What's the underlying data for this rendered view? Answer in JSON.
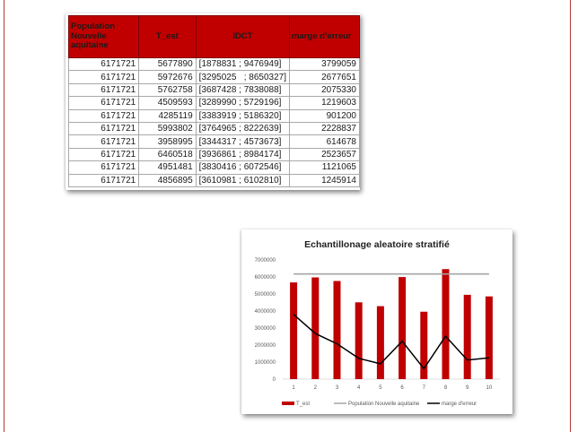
{
  "table": {
    "headers": [
      "Population Nouvelle aquitaine",
      "T_est",
      "IDCT",
      "marge d'erreur"
    ],
    "rows": [
      [
        "6171721",
        "5677890",
        "[1878831 ; 9476949]",
        "3799059"
      ],
      [
        "6171721",
        "5972676",
        "[3295025   ; 8650327]",
        "2677651"
      ],
      [
        "6171721",
        "5762758",
        "[3687428 ; 7838088]",
        "2075330"
      ],
      [
        "6171721",
        "4509593",
        "[3289990 ; 5729196]",
        "1219603"
      ],
      [
        "6171721",
        "4285119",
        "[3383919 ; 5186320]",
        "901200"
      ],
      [
        "6171721",
        "5993802",
        "[3764965 ; 8222639]",
        "2228837"
      ],
      [
        "6171721",
        "3958995",
        "[3344317 ; 4573673]",
        "614678"
      ],
      [
        "6171721",
        "6460518",
        "[3936861 ; 8984174]",
        "2523657"
      ],
      [
        "6171721",
        "4951481",
        "[3830416 ; 6072546]",
        "1121065"
      ],
      [
        "6171721",
        "4856895",
        "[3610981 ; 6102810]",
        "1245914"
      ]
    ]
  },
  "chart_data": {
    "type": "bar",
    "title": "Echantillonage aleatoire stratifié",
    "categories": [
      "1",
      "2",
      "3",
      "4",
      "5",
      "6",
      "7",
      "8",
      "9",
      "10"
    ],
    "ylim": [
      0,
      7000000
    ],
    "yticks": [
      "0",
      "1000000",
      "2000000",
      "3000000",
      "4000000",
      "5000000",
      "6000000",
      "7000000"
    ],
    "grid": false,
    "legend_position": "bottom",
    "series": [
      {
        "name": "T_est",
        "kind": "bar",
        "color": "#c00000",
        "values": [
          5677890,
          5972676,
          5762758,
          4509593,
          4285119,
          5993802,
          3958995,
          6460518,
          4951481,
          4856895
        ]
      },
      {
        "name": "Population Nouvelle aquitaine",
        "kind": "line",
        "color": "#a5a5a5",
        "values": [
          6171721,
          6171721,
          6171721,
          6171721,
          6171721,
          6171721,
          6171721,
          6171721,
          6171721,
          6171721
        ]
      },
      {
        "name": "marge d'erreur",
        "kind": "line",
        "color": "#000000",
        "values": [
          3799059,
          2677651,
          2075330,
          1219603,
          901200,
          2228837,
          614678,
          2523657,
          1121065,
          1245914
        ]
      }
    ]
  }
}
